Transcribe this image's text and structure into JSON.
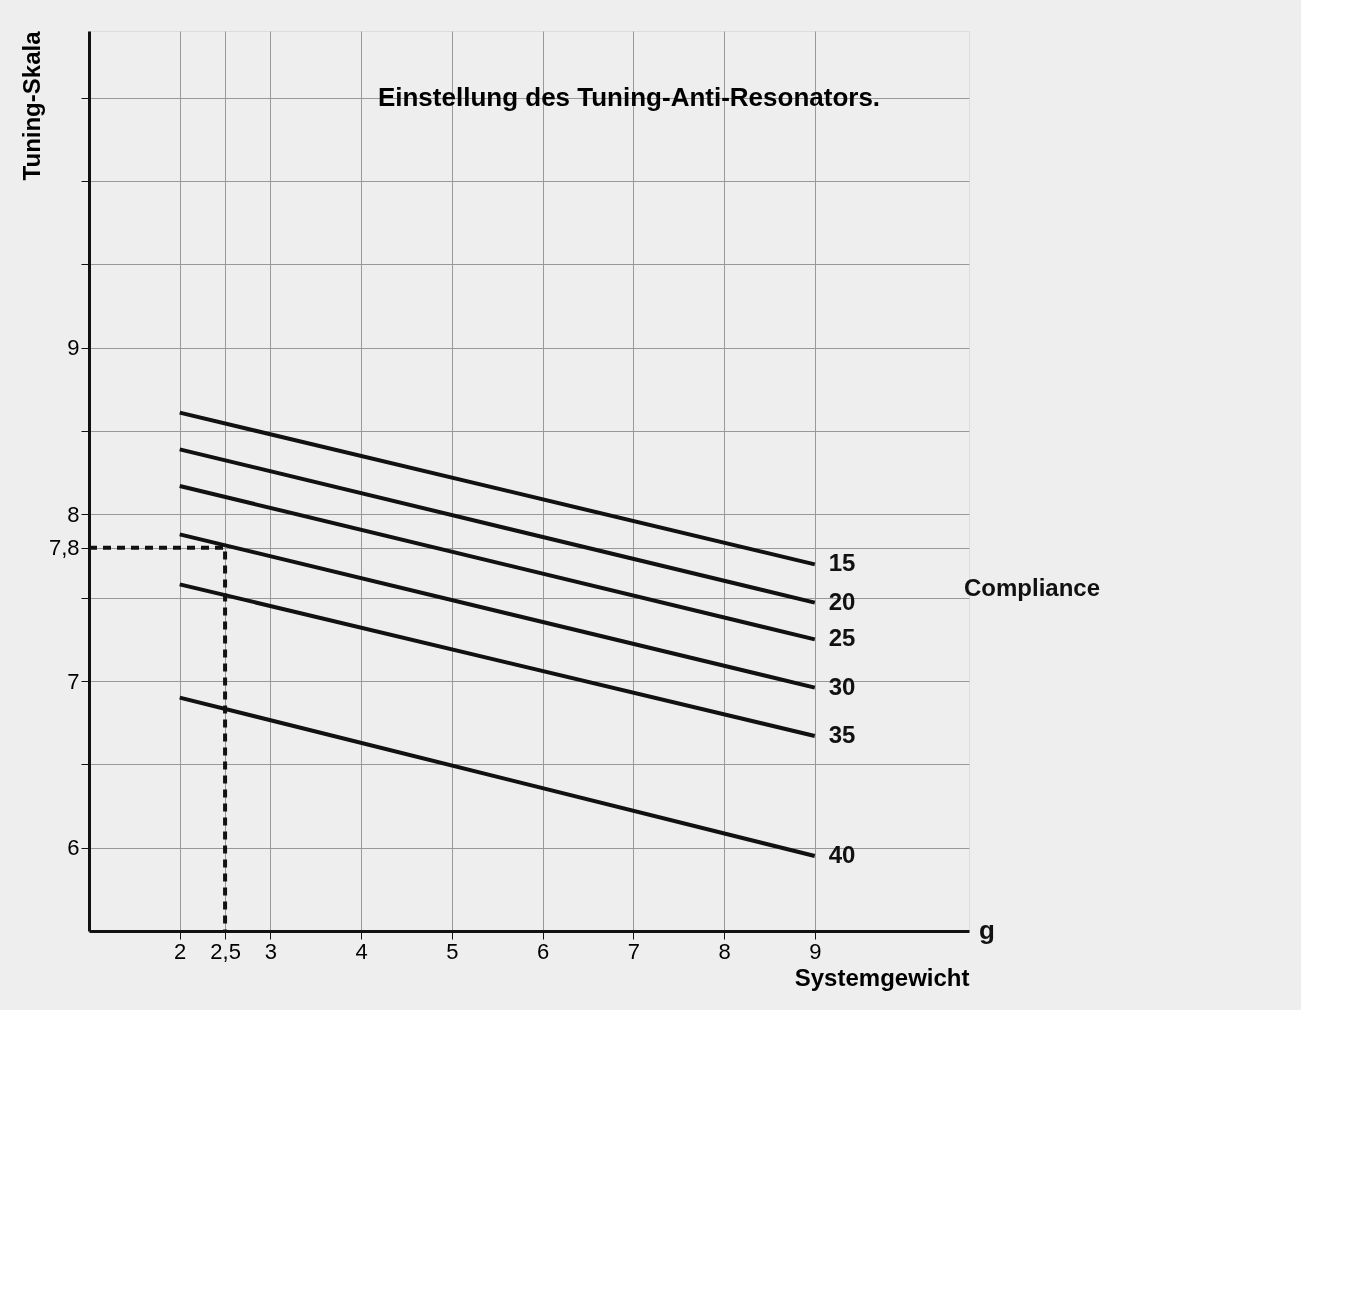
{
  "chart_data": {
    "type": "line",
    "title": "Einstellung des Tuning-Anti-Resonators.",
    "xlabel": "Systemgewicht",
    "ylabel": "Tuning-Skala",
    "legend_title": "Compliance",
    "annotations": [
      "g"
    ],
    "xlim": [
      1,
      10.7
    ],
    "ylim": [
      5.5,
      10.9
    ],
    "xticks": [
      2,
      {
        "value": 2.5,
        "label": "2,5"
      },
      3,
      4,
      5,
      6,
      7,
      8,
      9
    ],
    "yticks": [
      6,
      {
        "value": 6.5,
        "label": null
      },
      7,
      {
        "value": 7.5,
        "label": null
      },
      {
        "value": 7.8,
        "label": "7,8"
      },
      8,
      {
        "value": 8.5,
        "label": null
      },
      9,
      {
        "value": 9.5,
        "label": null
      },
      {
        "value": 10,
        "label": null
      },
      {
        "value": 10.5,
        "label": null
      }
    ],
    "grid": true,
    "line_style": "solid",
    "marker": "none",
    "series": [
      {
        "name": "15",
        "color": "#111111",
        "x": [
          2,
          9
        ],
        "values": [
          8.61,
          7.7
        ]
      },
      {
        "name": "20",
        "color": "#111111",
        "x": [
          2,
          9
        ],
        "values": [
          8.39,
          7.47
        ]
      },
      {
        "name": "25",
        "color": "#111111",
        "x": [
          2,
          9
        ],
        "values": [
          8.17,
          7.25
        ]
      },
      {
        "name": "30",
        "color": "#111111",
        "x": [
          2,
          9
        ],
        "values": [
          7.88,
          6.96
        ]
      },
      {
        "name": "35",
        "color": "#111111",
        "x": [
          2,
          9
        ],
        "values": [
          7.58,
          6.67
        ]
      },
      {
        "name": "40",
        "color": "#111111",
        "x": [
          2,
          9
        ],
        "values": [
          6.9,
          5.95
        ]
      },
      {
        "color": "#111111",
        "line_style": "dashed",
        "x": [
          1,
          2.5,
          2.5
        ],
        "values": [
          7.8,
          7.8,
          5.5
        ]
      }
    ]
  }
}
